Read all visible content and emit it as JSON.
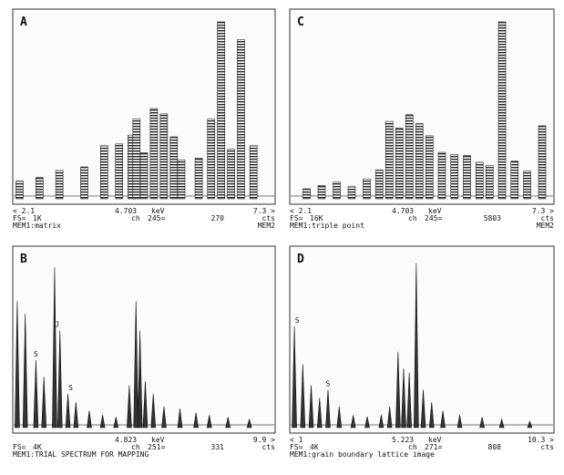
{
  "chart_data": [
    {
      "type": "line",
      "panel_label": "A",
      "range_start": "< 2.1",
      "range_end": "7.3 >",
      "cursor_energy": "4.703",
      "energy_unit": "keV",
      "fs_label": "FS=",
      "fs_value": "1K",
      "ch_label": "ch",
      "channel": "245=",
      "counts": "270",
      "counts_unit": "cts",
      "memory_label": "MEM1:matrix",
      "mem_right": "MEM2",
      "xlim": [
        2.1,
        7.3
      ],
      "ylim": [
        0,
        1000
      ],
      "bar_style": "hatched",
      "series": [
        {
          "x": [
            2.2,
            2.6,
            3.0,
            3.5,
            3.9,
            4.2,
            4.45,
            4.55,
            4.7,
            4.9,
            5.1,
            5.3,
            5.45,
            5.8,
            6.05,
            6.25,
            6.45,
            6.65,
            6.9
          ],
          "values": [
            100,
            120,
            160,
            180,
            300,
            310,
            360,
            450,
            260,
            510,
            480,
            350,
            220,
            230,
            450,
            1000,
            280,
            900,
            300
          ]
        }
      ]
    },
    {
      "type": "line",
      "panel_label": "C",
      "range_start": "< 2.1",
      "range_end": "7.3 >",
      "cursor_energy": "4.703",
      "energy_unit": "keV",
      "fs_label": "FS=",
      "fs_value": "16K",
      "ch_label": "ch",
      "channel": "245=",
      "counts": "5803",
      "counts_unit": "cts",
      "memory_label": "MEM1:triple point",
      "mem_right": "MEM2",
      "xlim": [
        2.1,
        7.3
      ],
      "ylim": [
        0,
        16000
      ],
      "bar_style": "hatched",
      "series": [
        {
          "x": [
            2.4,
            2.7,
            3.0,
            3.3,
            3.6,
            3.85,
            4.05,
            4.25,
            4.45,
            4.65,
            4.85,
            5.1,
            5.35,
            5.6,
            5.85,
            6.05,
            6.3,
            6.55,
            6.8,
            7.1
          ],
          "values": [
            900,
            1200,
            1500,
            1100,
            1800,
            2600,
            7000,
            6400,
            7600,
            6800,
            5700,
            4200,
            4000,
            3900,
            3300,
            3000,
            16000,
            3400,
            2500,
            6600
          ]
        }
      ]
    },
    {
      "type": "line",
      "panel_label": "B",
      "range_end": "9.9 >",
      "cursor_energy": "4.823",
      "energy_unit": "keV",
      "fs_label": "FS=",
      "fs_value": "4K",
      "ch_label": "ch",
      "channel": "251=",
      "counts": "331",
      "counts_unit": "cts",
      "memory_label": "MEM1:TRIAL SPECTRUM FOR MAPPING",
      "xlim": [
        0.2,
        9.9
      ],
      "ylim": [
        0,
        4000
      ],
      "bar_style": "solid",
      "peak_labels": [
        {
          "text": "J",
          "x": 1.8
        },
        {
          "text": "S",
          "x": 1.0
        },
        {
          "text": "S",
          "x": 2.3
        }
      ],
      "series": [
        {
          "x": [
            0.3,
            0.6,
            1.0,
            1.3,
            1.7,
            1.9,
            2.2,
            2.5,
            3.0,
            3.5,
            4.0,
            4.5,
            4.75,
            4.9,
            5.1,
            5.4,
            5.8,
            6.4,
            7.0,
            7.5,
            8.2,
            9.0
          ],
          "values": [
            3000,
            2700,
            1600,
            1200,
            3800,
            2300,
            800,
            600,
            400,
            300,
            250,
            1000,
            3000,
            2300,
            1100,
            800,
            500,
            450,
            350,
            300,
            250,
            200
          ]
        }
      ]
    },
    {
      "type": "line",
      "panel_label": "D",
      "range_start": "< 1",
      "range_end": "10.3 >",
      "cursor_energy": "5.223",
      "energy_unit": "keV",
      "fs_label": "FS=",
      "fs_value": "4K",
      "ch_label": "ch",
      "channel": "271=",
      "counts": "808",
      "counts_unit": "cts",
      "memory_label": "MEM1:grain boundary lattice image",
      "xlim": [
        1.0,
        10.3
      ],
      "ylim": [
        0,
        4000
      ],
      "bar_style": "solid",
      "peak_labels": [
        {
          "text": "S",
          "x": 1.2
        },
        {
          "text": "S",
          "x": 2.3
        }
      ],
      "series": [
        {
          "x": [
            1.1,
            1.4,
            1.7,
            2.0,
            2.3,
            2.7,
            3.2,
            3.7,
            4.2,
            4.5,
            4.8,
            5.0,
            5.2,
            5.45,
            5.7,
            6.0,
            6.4,
            7.0,
            7.8,
            8.5,
            9.5
          ],
          "values": [
            2400,
            1500,
            1000,
            700,
            900,
            500,
            300,
            260,
            300,
            500,
            1800,
            1400,
            1300,
            3900,
            900,
            600,
            400,
            300,
            250,
            200,
            150
          ]
        }
      ]
    }
  ]
}
